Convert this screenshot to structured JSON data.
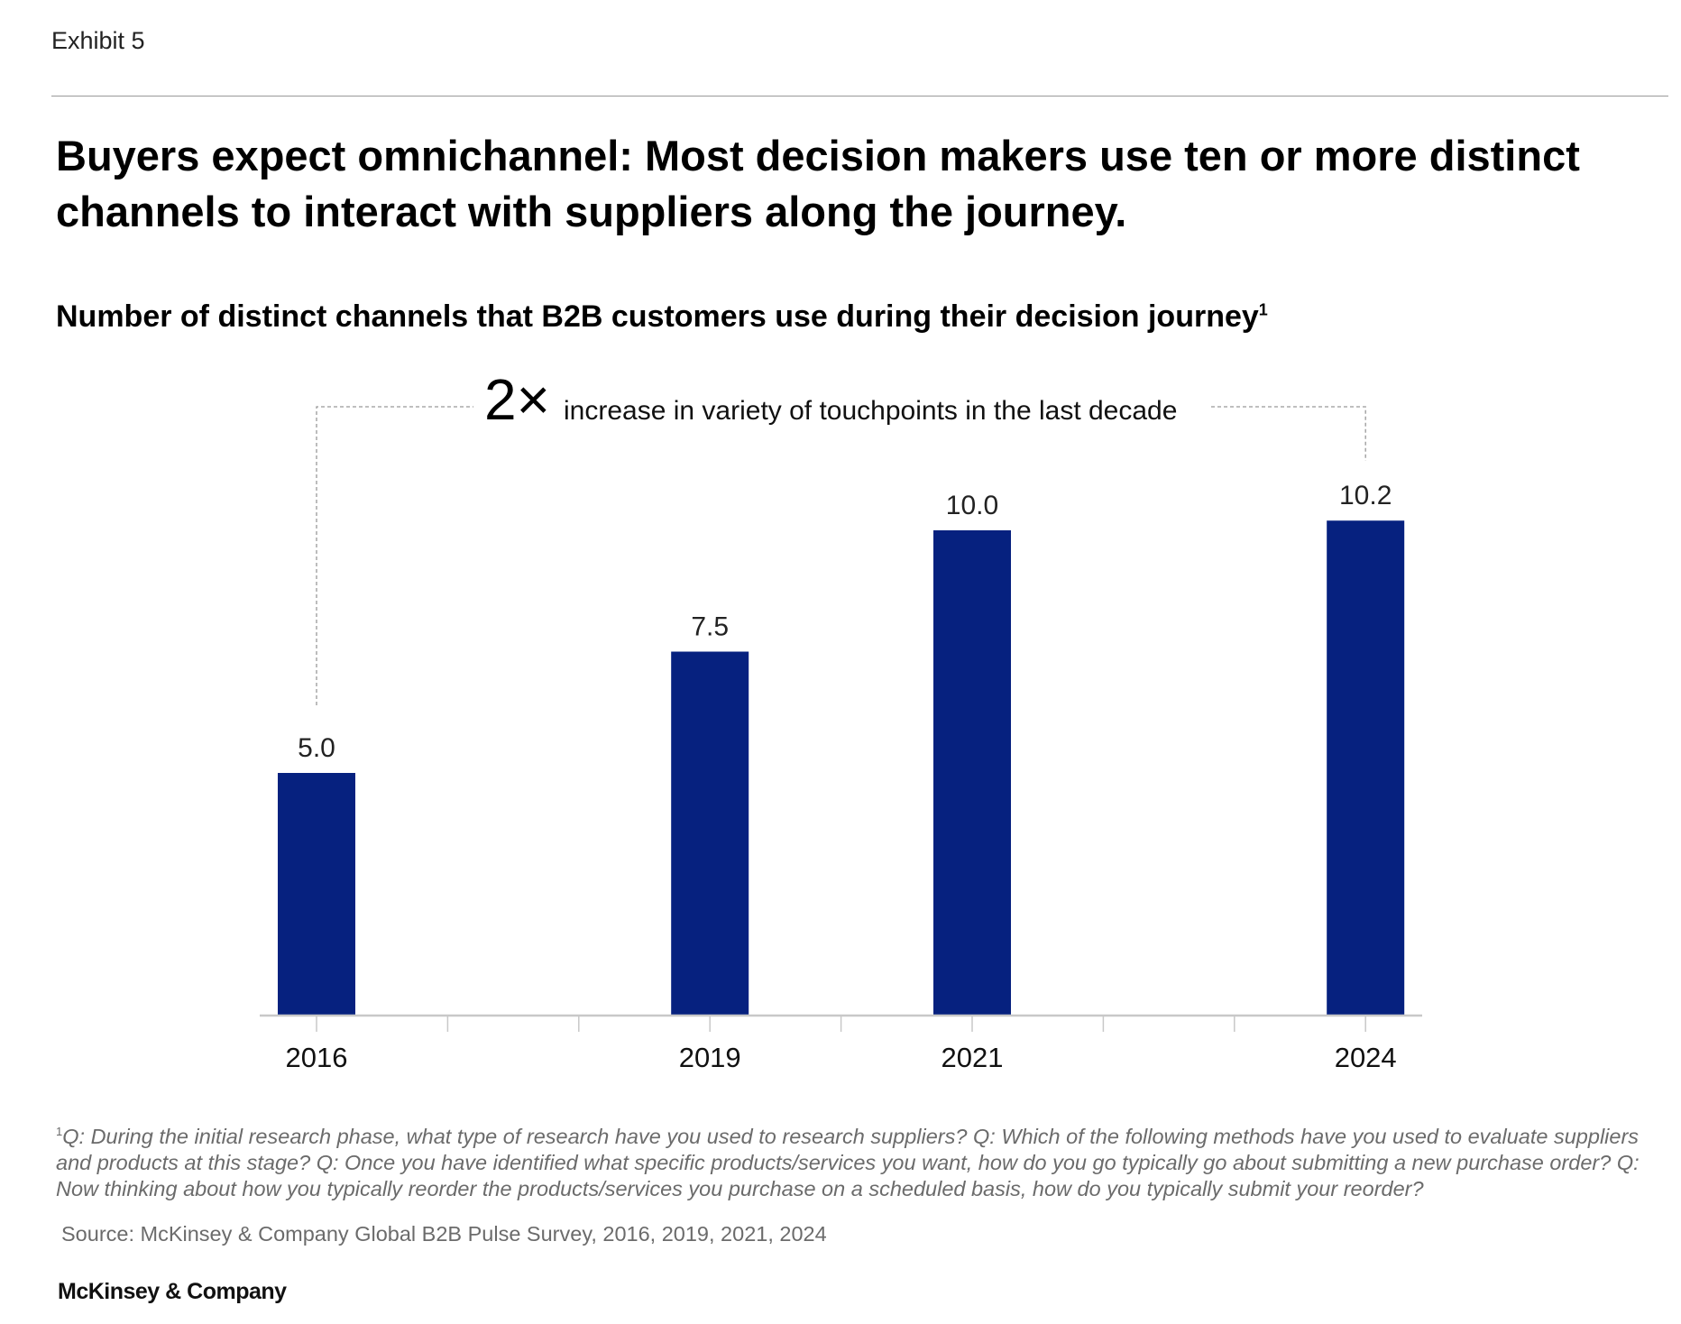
{
  "header": {
    "exhibit": "Exhibit 5",
    "title": "Buyers expect omnichannel: Most decision makers use ten or more distinct channels to interact with suppliers along the journey.",
    "subtitle": "Number of distinct channels that B2B customers use during their decision journey",
    "subtitle_footnote_marker": "1"
  },
  "chart_data": {
    "type": "bar",
    "title": "Number of distinct channels that B2B customers use during their decision journey",
    "categories": [
      "2016",
      "2019",
      "2021",
      "2024"
    ],
    "values": [
      5.0,
      7.5,
      10.0,
      10.2
    ],
    "value_labels": [
      "5.0",
      "7.5",
      "10.0",
      "10.2"
    ],
    "x_axis_range": [
      2016,
      2024
    ],
    "ylim": [
      0,
      10.2
    ],
    "grid": false,
    "bar_color": "#06217f",
    "annotation": {
      "big": "2×",
      "text": "increase in variety of touchpoints in the last decade",
      "from": "2016",
      "to": "2024"
    }
  },
  "footer": {
    "footnote_marker": "1",
    "footnote": "Q: During the initial research phase, what type of research have you used to research suppliers? Q: Which of the following methods have you used to evaluate suppliers and products at this stage? Q: Once you have identified what specific products/services you want, how do you go typically go about submitting a new purchase order? Q: Now thinking about how you typically reorder the products/services you purchase on a scheduled basis, how do you typically submit your reorder?",
    "source": "Source: McKinsey & Company Global B2B Pulse Survey, 2016, 2019, 2021, 2024",
    "logo": "McKinsey & Company"
  }
}
